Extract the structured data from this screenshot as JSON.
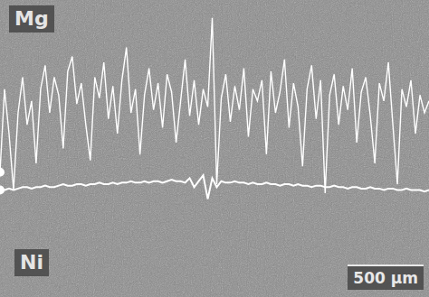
{
  "chart_data": {
    "type": "line",
    "tick_labels": false,
    "grid": false,
    "annotations": [
      "500 µm"
    ],
    "xlim": [
      0,
      95
    ],
    "xticks": [
      0,
      95
    ],
    "ylim": [
      0,
      100
    ],
    "yticks": [
      0,
      100
    ],
    "x": [
      0,
      1,
      2,
      3,
      4,
      5,
      6,
      7,
      8,
      9,
      10,
      11,
      12,
      13,
      14,
      15,
      16,
      17,
      18,
      19,
      20,
      21,
      22,
      23,
      24,
      25,
      26,
      27,
      28,
      29,
      30,
      31,
      32,
      33,
      34,
      35,
      36,
      37,
      38,
      39,
      40,
      41,
      42,
      43,
      44,
      45,
      46,
      47,
      48,
      49,
      50,
      51,
      52,
      53,
      54,
      55,
      56,
      57,
      58,
      59,
      60,
      61,
      62,
      63,
      64,
      65,
      66,
      67,
      68,
      69,
      70,
      71,
      72,
      73,
      74,
      75,
      76,
      77,
      78,
      79,
      80,
      81,
      82,
      83,
      84,
      85,
      86,
      87,
      88,
      89,
      90,
      91,
      92,
      93,
      94,
      95
    ],
    "series": [
      {
        "name": "Mg",
        "color": "#ffffff",
        "values": [
          42,
          70,
          55,
          36,
          62,
          74,
          58,
          66,
          45,
          70,
          78,
          62,
          74,
          68,
          50,
          76,
          81,
          65,
          72,
          58,
          46,
          74,
          67,
          79,
          60,
          71,
          55,
          73,
          84,
          62,
          70,
          48,
          68,
          77,
          63,
          72,
          57,
          75,
          69,
          52,
          66,
          80,
          61,
          73,
          58,
          70,
          64,
          94,
          38,
          67,
          75,
          59,
          71,
          63,
          77,
          54,
          70,
          66,
          73,
          48,
          76,
          62,
          69,
          80,
          57,
          72,
          64,
          44,
          70,
          78,
          60,
          73,
          35,
          68,
          75,
          58,
          71,
          63,
          77,
          52,
          69,
          74,
          61,
          45,
          72,
          66,
          79,
          58,
          38,
          70,
          64,
          73,
          55,
          68,
          62,
          66
        ]
      },
      {
        "name": "Ni",
        "color": "#ffffff",
        "values": [
          36,
          36,
          36.5,
          36,
          36.5,
          37,
          37,
          36.5,
          37,
          37,
          37.5,
          37,
          37,
          37.5,
          38,
          37.5,
          37.5,
          38,
          38,
          37.5,
          38,
          38,
          38.5,
          38,
          38,
          38.5,
          38,
          38.5,
          38.5,
          39,
          38.5,
          38.5,
          39,
          38.5,
          39,
          39,
          38.5,
          39,
          39.5,
          39,
          39,
          38.5,
          40,
          37,
          39,
          41,
          33,
          40,
          37,
          39,
          38.5,
          38.5,
          39,
          38.5,
          38.5,
          38,
          38.5,
          38,
          38,
          38.5,
          38,
          38,
          37.5,
          38,
          38,
          37.5,
          38,
          37.5,
          37.5,
          37,
          37.5,
          37.5,
          37,
          37,
          37.5,
          37,
          37,
          36.5,
          37,
          37,
          36.5,
          36.5,
          37,
          36.5,
          36.5,
          36,
          36.5,
          36.5,
          36,
          36,
          36.5,
          36,
          36,
          36,
          35.5,
          36
        ]
      }
    ]
  }
}
